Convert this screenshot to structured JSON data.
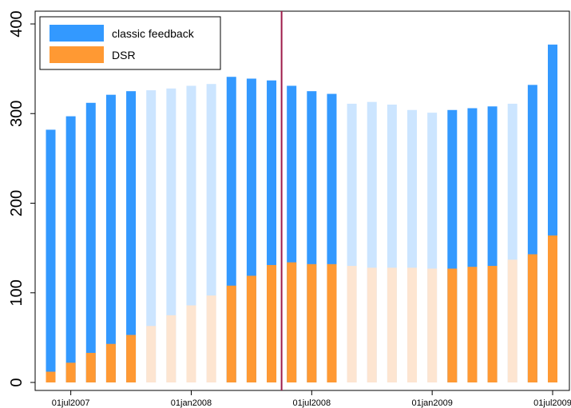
{
  "chart_data": {
    "type": "bar",
    "stacked": false,
    "overlaid": true,
    "x_tick_labels": [
      "01jul2007",
      "01jan2008",
      "01jul2008",
      "01jan2009",
      "01jul2009"
    ],
    "x_tick_bar_index": [
      1,
      7,
      13,
      19,
      25
    ],
    "y_ticks": [
      0,
      100,
      200,
      300,
      400
    ],
    "ylim": [
      0,
      400
    ],
    "grid": false,
    "legend_position": "top-left",
    "reference_line_after_bar": 11,
    "series": [
      {
        "name": "classic feedback",
        "color": "#3399ff",
        "values": [
          282,
          297,
          312,
          321,
          325,
          326,
          328,
          331,
          333,
          341,
          339,
          337,
          331,
          325,
          322,
          311,
          313,
          310,
          304,
          301,
          304,
          306,
          308,
          311,
          332,
          377
        ]
      },
      {
        "name": "DSR",
        "color": "#ff9933",
        "values": [
          12,
          22,
          33,
          43,
          53,
          63,
          75,
          86,
          97,
          108,
          119,
          131,
          134,
          132,
          132,
          130,
          128,
          128,
          128,
          127,
          127,
          129,
          130,
          137,
          143,
          164
        ]
      }
    ],
    "faded_bars": [
      5,
      6,
      7,
      8,
      15,
      16,
      17,
      18,
      19,
      23
    ],
    "faded_colors": {
      "classic feedback": "#cce5ff",
      "DSR": "#fde5d1"
    },
    "refline_color": "#9e1b4a"
  }
}
